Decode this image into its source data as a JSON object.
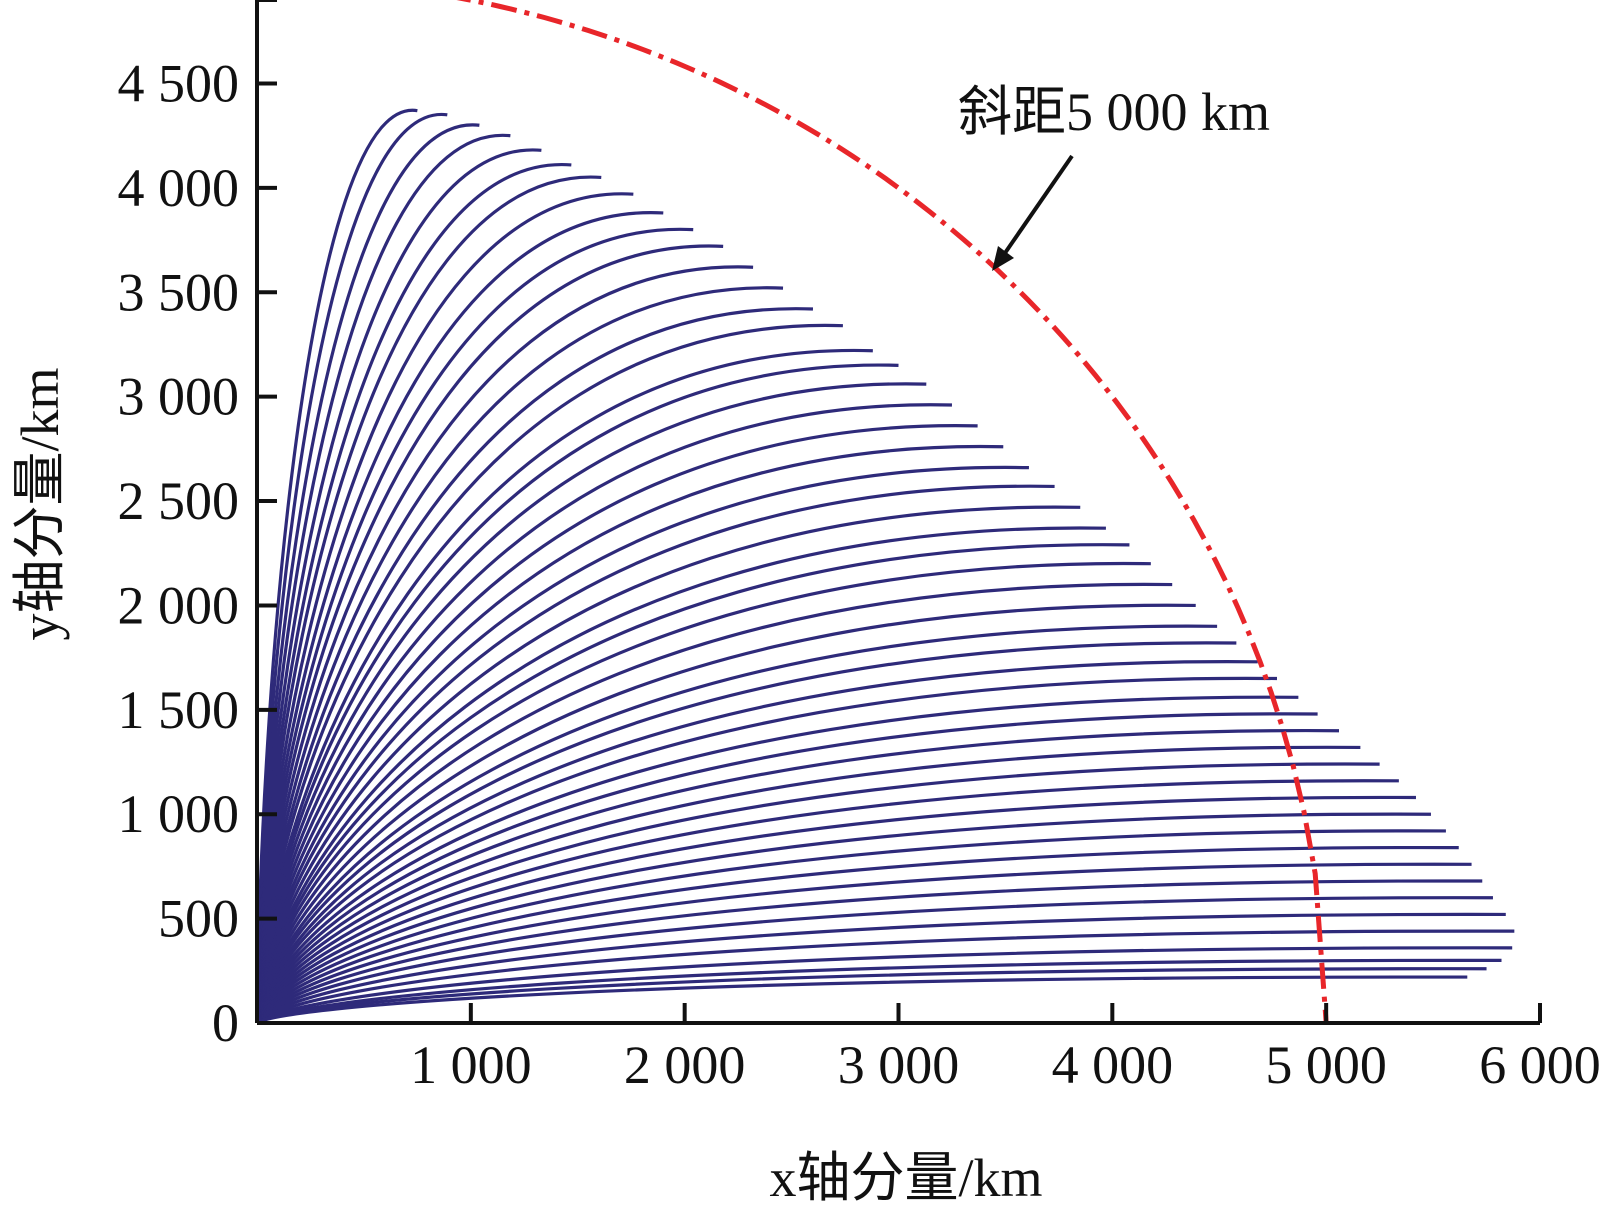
{
  "chart_data": {
    "type": "line",
    "title": "",
    "xlabel": "x轴分量/km",
    "ylabel": "y轴分量/km",
    "xlim": [
      0,
      6000
    ],
    "ylim": [
      0,
      4900
    ],
    "x_ticks": [
      {
        "value": 1000,
        "label": "1 000"
      },
      {
        "value": 2000,
        "label": "2 000"
      },
      {
        "value": 3000,
        "label": "3 000"
      },
      {
        "value": 4000,
        "label": "4 000"
      },
      {
        "value": 5000,
        "label": "5 000"
      },
      {
        "value": 6000,
        "label": "6 000"
      }
    ],
    "y_ticks": [
      {
        "value": 0,
        "label": "0"
      },
      {
        "value": 500,
        "label": "500"
      },
      {
        "value": 1000,
        "label": "1 000"
      },
      {
        "value": 1500,
        "label": "1 500"
      },
      {
        "value": 2000,
        "label": "2 000"
      },
      {
        "value": 2500,
        "label": "2 500"
      },
      {
        "value": 3000,
        "label": "3 000"
      },
      {
        "value": 3500,
        "label": "3 500"
      },
      {
        "value": 4000,
        "label": "4 000"
      },
      {
        "value": 4500,
        "label": "4 500"
      }
    ],
    "grid": false,
    "trajectory_family": {
      "color": "#2e2a7a",
      "count": 52,
      "endpoint_x": [
        750,
        890,
        1040,
        1185,
        1330,
        1470,
        1610,
        1760,
        1900,
        2040,
        2180,
        2320,
        2460,
        2600,
        2740,
        2880,
        3000,
        3130,
        3250,
        3370,
        3490,
        3610,
        3730,
        3850,
        3970,
        4080,
        4180,
        4280,
        4390,
        4490,
        4580,
        4680,
        4770,
        4870,
        4960,
        5060,
        5160,
        5250,
        5340,
        5420,
        5490,
        5560,
        5620,
        5680,
        5730,
        5780,
        5840,
        5880,
        5870,
        5820,
        5750,
        5660
      ],
      "endpoint_y": [
        4370,
        4350,
        4300,
        4250,
        4180,
        4110,
        4050,
        3970,
        3880,
        3800,
        3720,
        3620,
        3520,
        3420,
        3340,
        3220,
        3150,
        3060,
        2960,
        2860,
        2760,
        2660,
        2570,
        2470,
        2370,
        2290,
        2200,
        2100,
        2000,
        1900,
        1820,
        1730,
        1650,
        1560,
        1480,
        1400,
        1320,
        1240,
        1160,
        1080,
        1000,
        920,
        840,
        760,
        680,
        600,
        520,
        440,
        360,
        300,
        260,
        220
      ]
    },
    "reference_curve": {
      "label": "斜距5 000 km",
      "radius": 5000,
      "x_range": [
        880,
        5000
      ],
      "color": "#e8262a",
      "style": "dash-dot"
    },
    "annotations": [
      {
        "text": "斜距5 000 km",
        "points_to": [
          3420,
          3650
        ]
      }
    ]
  }
}
